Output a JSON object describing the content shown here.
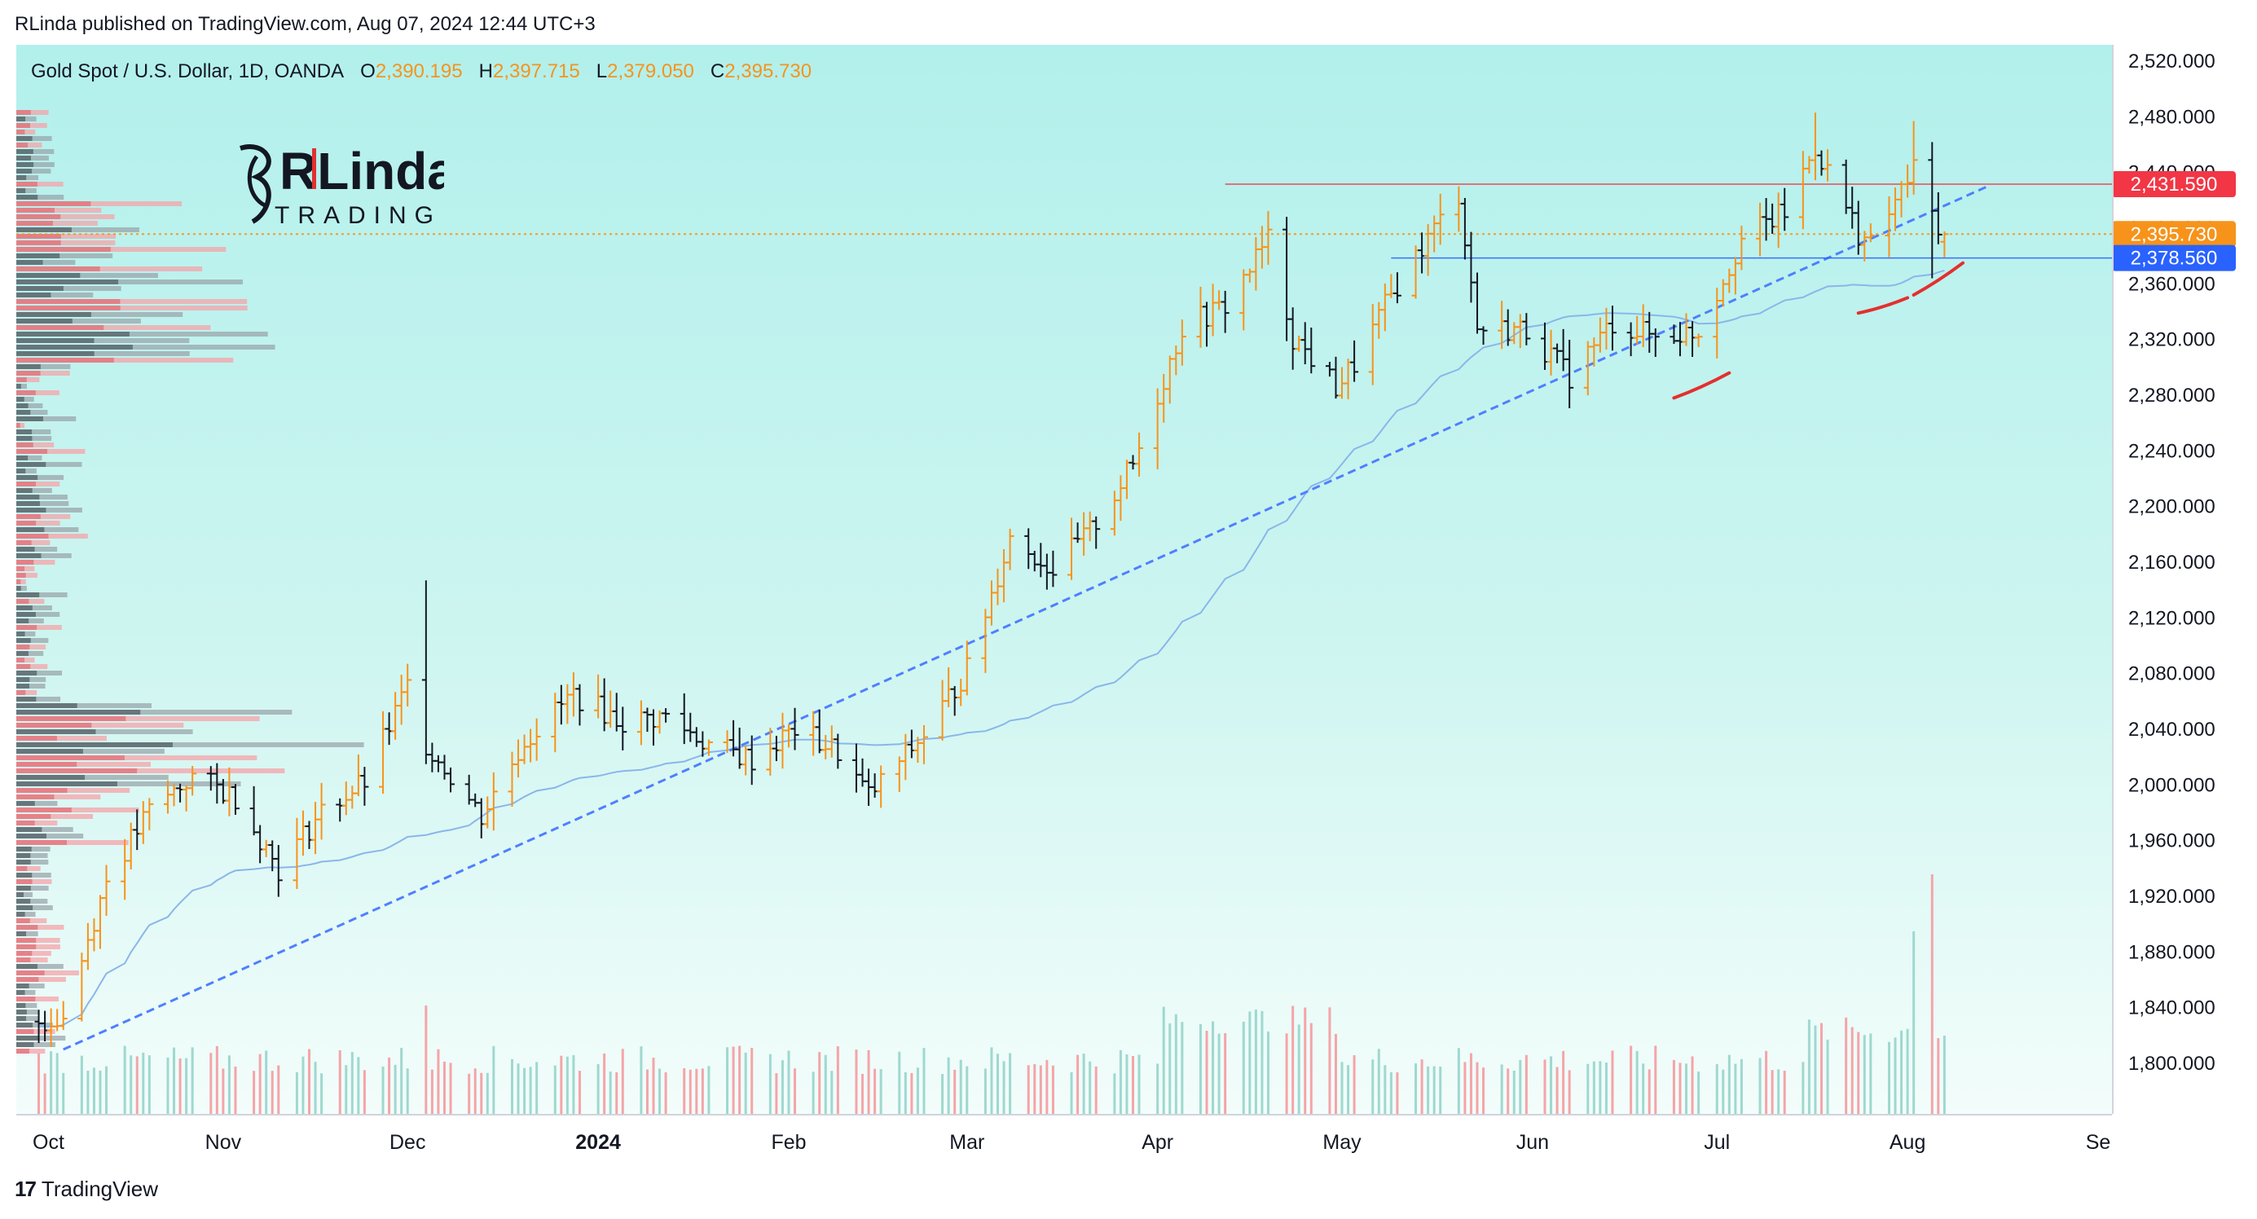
{
  "header": {
    "published": "RLinda published on TradingView.com, Aug 07, 2024 12:44 UTC+3"
  },
  "legend": {
    "symbol": "Gold Spot / U.S. Dollar, 1D, OANDA",
    "o_label": "O",
    "o": "2,390.195",
    "h_label": "H",
    "h": "2,397.715",
    "l_label": "L",
    "l": "2,379.050",
    "c_label": "C",
    "c": "2,395.730"
  },
  "logo": {
    "line1": "RLinda",
    "line2": "TRADING"
  },
  "footer": {
    "brand": "TradingView"
  },
  "colors": {
    "up": "#f7931a",
    "down": "#131722",
    "vol_up": "#9fd8cf",
    "vol_down": "#f4a5a8",
    "trendline": "#4f7fff",
    "ma": "#8ab6ea",
    "resistance": "#d9534f",
    "support": "#2962ff",
    "marker": "#e3302f"
  },
  "chart_data": {
    "type": "ohlc",
    "title": "Gold Spot / U.S. Dollar, 1D, OANDA",
    "ylim": [
      1760,
      2530
    ],
    "y_ticks": [
      "2,520.000",
      "2,480.000",
      "2,440.000",
      "2,400.000",
      "2,360.000",
      "2,320.000",
      "2,280.000",
      "2,240.000",
      "2,200.000",
      "2,160.000",
      "2,120.000",
      "2,080.000",
      "2,040.000",
      "2,000.000",
      "1,960.000",
      "1,920.000",
      "1,880.000",
      "1,840.000",
      "1,800.000"
    ],
    "x_ticks": [
      {
        "label": "Oct",
        "bold": false
      },
      {
        "label": "Nov",
        "bold": false
      },
      {
        "label": "Dec",
        "bold": false
      },
      {
        "label": "2024",
        "bold": true
      },
      {
        "label": "Feb",
        "bold": false
      },
      {
        "label": "Mar",
        "bold": false
      },
      {
        "label": "Apr",
        "bold": false
      },
      {
        "label": "May",
        "bold": false
      },
      {
        "label": "Jun",
        "bold": false
      },
      {
        "label": "Jul",
        "bold": false
      },
      {
        "label": "Aug",
        "bold": false
      },
      {
        "label": "Se",
        "bold": false
      }
    ],
    "anchor_closes": [
      [
        "2023-10-02",
        1830
      ],
      [
        "2023-10-06",
        1833
      ],
      [
        "2023-10-13",
        1932
      ],
      [
        "2023-10-20",
        1981
      ],
      [
        "2023-10-27",
        2006
      ],
      [
        "2023-11-03",
        1992
      ],
      [
        "2023-11-10",
        1940
      ],
      [
        "2023-11-17",
        1981
      ],
      [
        "2023-11-24",
        2002
      ],
      [
        "2023-12-01",
        2071
      ],
      [
        "2023-12-04",
        2030
      ],
      [
        "2023-12-13",
        1978
      ],
      [
        "2023-12-20",
        2032
      ],
      [
        "2023-12-28",
        2065
      ],
      [
        "2024-01-05",
        2045
      ],
      [
        "2024-01-12",
        2049
      ],
      [
        "2024-01-19",
        2029
      ],
      [
        "2024-01-26",
        2018
      ],
      [
        "2024-02-02",
        2040
      ],
      [
        "2024-02-09",
        2024
      ],
      [
        "2024-02-14",
        1992
      ],
      [
        "2024-02-23",
        2036
      ],
      [
        "2024-03-01",
        2083
      ],
      [
        "2024-03-08",
        2178
      ],
      [
        "2024-03-15",
        2155
      ],
      [
        "2024-03-21",
        2182
      ],
      [
        "2024-03-28",
        2230
      ],
      [
        "2024-04-05",
        2329
      ],
      [
        "2024-04-12",
        2344
      ],
      [
        "2024-04-19",
        2392
      ],
      [
        "2024-04-23",
        2322
      ],
      [
        "2024-04-30",
        2286
      ],
      [
        "2024-05-03",
        2302
      ],
      [
        "2024-05-10",
        2360
      ],
      [
        "2024-05-20",
        2425
      ],
      [
        "2024-05-23",
        2328
      ],
      [
        "2024-05-31",
        2327
      ],
      [
        "2024-06-07",
        2294
      ],
      [
        "2024-06-14",
        2332
      ],
      [
        "2024-06-21",
        2322
      ],
      [
        "2024-06-28",
        2326
      ],
      [
        "2024-07-05",
        2392
      ],
      [
        "2024-07-12",
        2411
      ],
      [
        "2024-07-17",
        2458
      ],
      [
        "2024-07-24",
        2397
      ],
      [
        "2024-07-26",
        2387
      ],
      [
        "2024-08-02",
        2442
      ],
      [
        "2024-08-05",
        2410
      ],
      [
        "2024-08-07",
        2395.73
      ]
    ],
    "last_bar": {
      "date": "2024-08-07",
      "open": 2390.195,
      "high": 2397.715,
      "low": 2379.05,
      "close": 2395.73
    },
    "horizontal_levels": [
      {
        "label": "2,431.590",
        "value": 2431.59,
        "color": "#f23645",
        "from": "2024-04-12"
      },
      {
        "label": "2,395.730",
        "value": 2395.73,
        "color": "#f7931a",
        "dotted": true
      },
      {
        "label": "2,378.560",
        "value": 2378.56,
        "color": "#2962ff",
        "from": "2024-05-09"
      }
    ],
    "trendline": {
      "from": [
        "2023-10-06",
        1810
      ],
      "to": [
        "2024-08-14",
        2430
      ],
      "style": "dashed"
    },
    "annotations": [
      {
        "type": "support-marker",
        "from": [
          "2024-06-24",
          2278
        ],
        "to": [
          "2024-07-03",
          2296
        ]
      },
      {
        "type": "support-marker",
        "from": [
          "2024-07-24",
          2339
        ],
        "to": [
          "2024-08-01",
          2350
        ]
      },
      {
        "type": "support-marker",
        "from": [
          "2024-08-02",
          2352
        ],
        "to": [
          "2024-08-10",
          2375
        ]
      }
    ],
    "volume_profile": true,
    "grid": false,
    "legend": "top-left"
  }
}
